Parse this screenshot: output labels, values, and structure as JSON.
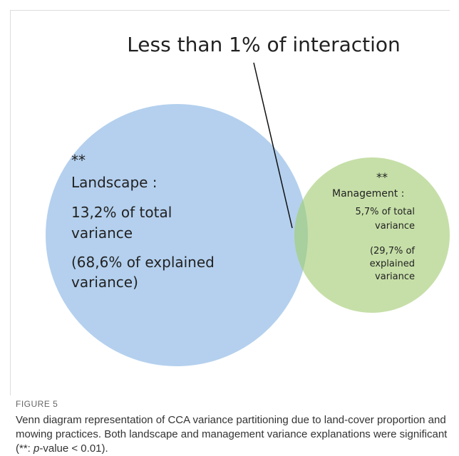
{
  "figure": {
    "annotation": "Less than 1% of interaction",
    "landscape": {
      "stars": "**",
      "label": "Landscape :",
      "lines": [
        "13,2% of total",
        "variance",
        "(68,6% of explained",
        "variance)"
      ]
    },
    "management": {
      "stars": "**",
      "label": "Management :",
      "lines": [
        "5,7% of total",
        "variance",
        "(29,7% of",
        "explained",
        "variance"
      ]
    }
  },
  "caption": {
    "label": "FIGURE 5",
    "text_before": "Venn diagram representation of CCA variance partitioning due to land-cover proportion and mowing practices. Both landscape and management variance explanations were significant (**: ",
    "italic": "p",
    "text_after": "-value < 0.01)."
  }
}
